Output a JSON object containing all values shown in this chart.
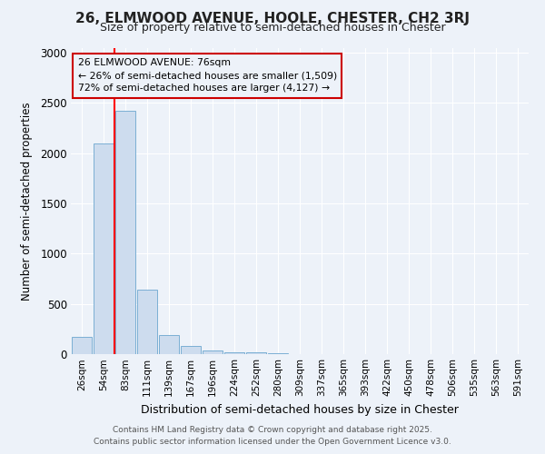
{
  "title": "26, ELMWOOD AVENUE, HOOLE, CHESTER, CH2 3RJ",
  "subtitle": "Size of property relative to semi-detached houses in Chester",
  "xlabel": "Distribution of semi-detached houses by size in Chester",
  "ylabel": "Number of semi-detached properties",
  "property_label": "26 ELMWOOD AVENUE: 76sqm",
  "pct_smaller": 26,
  "count_smaller": 1509,
  "pct_larger": 72,
  "count_larger": 4127,
  "bin_labels": [
    "26sqm",
    "54sqm",
    "83sqm",
    "111sqm",
    "139sqm",
    "167sqm",
    "196sqm",
    "224sqm",
    "252sqm",
    "280sqm",
    "309sqm",
    "337sqm",
    "365sqm",
    "393sqm",
    "422sqm",
    "450sqm",
    "478sqm",
    "506sqm",
    "535sqm",
    "563sqm",
    "591sqm"
  ],
  "bar_values": [
    175,
    2100,
    2420,
    640,
    190,
    85,
    40,
    20,
    15,
    5,
    0,
    0,
    0,
    0,
    0,
    0,
    0,
    0,
    0,
    0,
    0
  ],
  "bar_color": "#cddcee",
  "bar_edge_color": "#7aafd4",
  "red_line_x": 1.5,
  "ylim": [
    0,
    3050
  ],
  "yticks": [
    0,
    500,
    1000,
    1500,
    2000,
    2500,
    3000
  ],
  "footer_line1": "Contains HM Land Registry data © Crown copyright and database right 2025.",
  "footer_line2": "Contains public sector information licensed under the Open Government Licence v3.0.",
  "annotation_box_color": "#cc0000",
  "background_color": "#edf2f9"
}
